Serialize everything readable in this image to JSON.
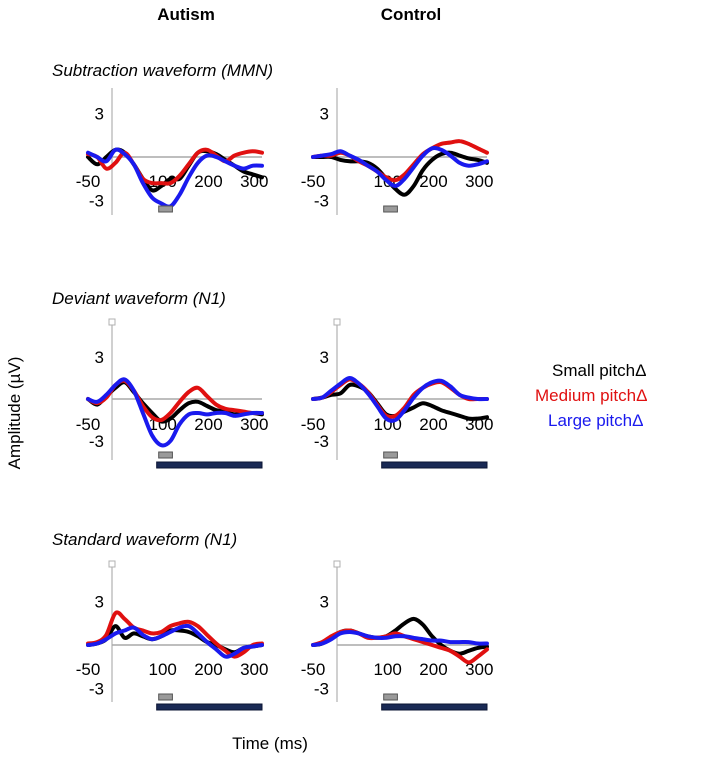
{
  "chart_data": {
    "type": "line",
    "xlabel": "Time (ms)",
    "ylabel": "Amplitude (µV)",
    "columns": [
      "Autism",
      "Control"
    ],
    "rows": [
      {
        "title": "Subtraction waveform (MMN)",
        "lowbar": false
      },
      {
        "title": "Deviant waveform (N1)",
        "lowbar": true
      },
      {
        "title": "Standard waveform (N1)",
        "lowbar": true
      }
    ],
    "x_ticks": [
      "-50",
      "100",
      "200",
      "300"
    ],
    "x_tick_values": [
      -50,
      100,
      200,
      300
    ],
    "y_ticks": [
      "3",
      "-3"
    ],
    "y_tick_values": [
      3,
      -3
    ],
    "xlim": [
      -50,
      330
    ],
    "ylim": [
      -4,
      5
    ],
    "legend": [
      {
        "name": "Small pitchΔ",
        "color": "#000000"
      },
      {
        "name": "Medium pitchΔ",
        "color": "#e01010"
      },
      {
        "name": "Large pitchΔ",
        "color": "#1a1aee"
      }
    ],
    "time_markers": {
      "short_window": [
        100,
        130
      ],
      "long_window": [
        100,
        330
      ]
    },
    "marker_colors": {
      "short": "#9a9a9a",
      "long": "#1a2a55"
    },
    "panels": [
      {
        "column": "Autism",
        "row": "Subtraction waveform (MMN)",
        "series": [
          {
            "name": "Small pitchΔ",
            "x": [
              -50,
              -30,
              -10,
              10,
              30,
              50,
              70,
              90,
              110,
              130,
              150,
              170,
              190,
              210,
              230,
              250,
              270,
              290,
              310,
              330
            ],
            "y": [
              0,
              -0.5,
              0,
              0.5,
              0.3,
              -0.5,
              -1.5,
              -2.3,
              -2.0,
              -1.5,
              -1.5,
              -0.6,
              0.3,
              0.4,
              0.2,
              -0.2,
              -0.6,
              -1.0,
              -1.2,
              -1.4
            ]
          },
          {
            "name": "Medium pitchΔ",
            "x": [
              -50,
              -30,
              -10,
              10,
              30,
              50,
              70,
              90,
              110,
              130,
              150,
              170,
              190,
              210,
              230,
              250,
              270,
              290,
              310,
              330
            ],
            "y": [
              0.2,
              0,
              -0.8,
              -0.4,
              0.3,
              -0.5,
              -1.5,
              -1.8,
              -1.8,
              -1.8,
              -1.3,
              -0.5,
              0.3,
              0.5,
              0.1,
              -0.3,
              0.1,
              0.3,
              0.4,
              0.3
            ]
          },
          {
            "name": "Large pitchΔ",
            "x": [
              -50,
              -30,
              -10,
              10,
              30,
              50,
              70,
              90,
              110,
              130,
              150,
              170,
              190,
              210,
              230,
              250,
              270,
              290,
              310,
              330
            ],
            "y": [
              0.3,
              0,
              -0.3,
              0.5,
              0.2,
              -0.5,
              -1.8,
              -2.8,
              -3.2,
              -3.4,
              -2.6,
              -1.4,
              -0.4,
              0.1,
              0,
              -0.3,
              -0.6,
              -0.8,
              -0.6,
              -0.6
            ]
          }
        ]
      },
      {
        "column": "Control",
        "row": "Subtraction waveform (MMN)",
        "series": [
          {
            "name": "Small pitchΔ",
            "x": [
              -50,
              -30,
              -10,
              10,
              30,
              50,
              70,
              90,
              110,
              130,
              150,
              170,
              190,
              210,
              230,
              250,
              270,
              290,
              310,
              330
            ],
            "y": [
              0,
              0,
              0,
              -0.2,
              -0.3,
              -0.3,
              -0.4,
              -0.8,
              -1.5,
              -2.2,
              -2.6,
              -2.0,
              -0.9,
              -0.2,
              0.2,
              0.3,
              0.1,
              -0.1,
              -0.2,
              -0.4
            ]
          },
          {
            "name": "Medium pitchΔ",
            "x": [
              -50,
              -30,
              -10,
              10,
              30,
              50,
              70,
              90,
              110,
              130,
              150,
              170,
              190,
              210,
              230,
              250,
              270,
              290,
              310,
              330
            ],
            "y": [
              0,
              0.1,
              0.1,
              0.3,
              0.1,
              -0.3,
              -0.6,
              -1.0,
              -1.4,
              -1.6,
              -1.2,
              -0.5,
              0.2,
              0.6,
              0.9,
              1.0,
              1.1,
              0.9,
              0.6,
              0.3
            ]
          },
          {
            "name": "Large pitchΔ",
            "x": [
              -50,
              -30,
              -10,
              10,
              30,
              50,
              70,
              90,
              110,
              130,
              150,
              170,
              190,
              210,
              230,
              250,
              270,
              290,
              310,
              330
            ],
            "y": [
              0,
              0.1,
              0.2,
              0.4,
              0.1,
              -0.2,
              -0.6,
              -1.0,
              -1.6,
              -2.0,
              -1.5,
              -0.7,
              0.1,
              0.6,
              0.5,
              0.1,
              -0.4,
              -0.6,
              -0.5,
              -0.3
            ]
          }
        ]
      },
      {
        "column": "Autism",
        "row": "Deviant waveform (N1)",
        "series": [
          {
            "name": "Small pitchΔ",
            "x": [
              -50,
              -30,
              -10,
              10,
              30,
              50,
              70,
              90,
              110,
              130,
              150,
              170,
              190,
              210,
              230,
              250,
              270,
              290,
              310,
              330
            ],
            "y": [
              0,
              -0.4,
              0.2,
              0.8,
              1.2,
              0.5,
              -0.3,
              -1.0,
              -1.6,
              -1.4,
              -0.8,
              -0.3,
              -0.2,
              -0.5,
              -0.8,
              -0.9,
              -1.1,
              -1.0,
              -1.0,
              -1.1
            ]
          },
          {
            "name": "Medium pitchΔ",
            "x": [
              -50,
              -30,
              -10,
              10,
              30,
              50,
              70,
              90,
              110,
              130,
              150,
              170,
              190,
              210,
              230,
              250,
              270,
              290,
              310,
              330
            ],
            "y": [
              0,
              -0.3,
              0.1,
              1.0,
              1.3,
              0.6,
              -0.5,
              -1.3,
              -1.5,
              -1.0,
              -0.2,
              0.5,
              0.8,
              0.2,
              -0.4,
              -0.7,
              -0.8,
              -0.9,
              -1.0,
              -1.0
            ]
          },
          {
            "name": "Large pitchΔ",
            "x": [
              -50,
              -30,
              -10,
              10,
              30,
              50,
              70,
              90,
              110,
              130,
              150,
              170,
              190,
              210,
              230,
              250,
              270,
              290,
              310,
              330
            ],
            "y": [
              0,
              -0.2,
              0.3,
              1.0,
              1.4,
              0.6,
              -1.0,
              -2.6,
              -3.3,
              -3.0,
              -1.8,
              -1.1,
              -1.0,
              -1.1,
              -1.0,
              -1.0,
              -1.2,
              -1.1,
              -1.0,
              -1.0
            ]
          }
        ]
      },
      {
        "column": "Control",
        "row": "Deviant waveform (N1)",
        "series": [
          {
            "name": "Small pitchΔ",
            "x": [
              -50,
              -30,
              -10,
              10,
              30,
              50,
              70,
              90,
              110,
              130,
              150,
              170,
              190,
              210,
              230,
              250,
              270,
              290,
              310,
              330
            ],
            "y": [
              0,
              0.1,
              0.3,
              0.4,
              1.0,
              0.9,
              0.5,
              -0.3,
              -1.1,
              -1.2,
              -0.9,
              -0.6,
              -0.3,
              -0.5,
              -0.8,
              -1.0,
              -1.2,
              -1.4,
              -1.4,
              -1.3
            ]
          },
          {
            "name": "Medium pitchΔ",
            "x": [
              -50,
              -30,
              -10,
              10,
              30,
              50,
              70,
              90,
              110,
              130,
              150,
              170,
              190,
              210,
              230,
              250,
              270,
              290,
              310,
              330
            ],
            "y": [
              0,
              0.1,
              0.5,
              1.0,
              1.4,
              1.1,
              0.5,
              -0.4,
              -1.2,
              -1.2,
              -0.6,
              0.3,
              0.8,
              1.1,
              1.2,
              0.8,
              0.3,
              0,
              0,
              0
            ]
          },
          {
            "name": "Large pitchΔ",
            "x": [
              -50,
              -30,
              -10,
              10,
              30,
              50,
              70,
              90,
              110,
              130,
              150,
              170,
              190,
              210,
              230,
              250,
              270,
              290,
              310,
              330
            ],
            "y": [
              0,
              0.1,
              0.6,
              1.1,
              1.5,
              1.1,
              0.4,
              -0.5,
              -1.4,
              -1.5,
              -0.8,
              0.1,
              0.8,
              1.2,
              1.3,
              0.9,
              0.3,
              0.1,
              0,
              0
            ]
          }
        ]
      },
      {
        "column": "Autism",
        "row": "Standard waveform (N1)",
        "series": [
          {
            "name": "Small pitchΔ",
            "x": [
              -50,
              -30,
              -10,
              10,
              30,
              50,
              70,
              90,
              110,
              130,
              150,
              170,
              190,
              210,
              230,
              250,
              270,
              290,
              310,
              330
            ],
            "y": [
              0,
              0.1,
              0.4,
              1.3,
              0.5,
              0.8,
              0.6,
              0.4,
              0.6,
              1.0,
              1.0,
              0.9,
              0.6,
              0.2,
              0,
              -0.3,
              -0.5,
              -0.2,
              -0.1,
              0
            ]
          },
          {
            "name": "Medium pitchΔ",
            "x": [
              -50,
              -30,
              -10,
              10,
              30,
              50,
              70,
              90,
              110,
              130,
              150,
              170,
              190,
              210,
              230,
              250,
              270,
              290,
              310,
              330
            ],
            "y": [
              0.1,
              0.2,
              0.7,
              2.2,
              1.8,
              1.2,
              1.0,
              0.8,
              0.9,
              1.3,
              1.5,
              1.6,
              1.3,
              0.7,
              0.1,
              -0.4,
              -0.8,
              -0.5,
              0,
              0.1
            ]
          },
          {
            "name": "Large pitchΔ",
            "x": [
              -50,
              -30,
              -10,
              10,
              30,
              50,
              70,
              90,
              110,
              130,
              150,
              170,
              190,
              210,
              230,
              250,
              270,
              290,
              310,
              330
            ],
            "y": [
              0,
              0.1,
              0.4,
              0.8,
              1.0,
              1.2,
              0.7,
              0.4,
              0.6,
              0.9,
              1.2,
              1.3,
              0.8,
              0.2,
              -0.3,
              -0.8,
              -0.6,
              -0.2,
              -0.1,
              0
            ]
          }
        ]
      },
      {
        "column": "Control",
        "row": "Standard waveform (N1)",
        "series": [
          {
            "name": "Small pitchΔ",
            "x": [
              -50,
              -30,
              -10,
              10,
              30,
              50,
              70,
              90,
              110,
              130,
              150,
              170,
              190,
              210,
              230,
              250,
              270,
              290,
              310,
              330
            ],
            "y": [
              0,
              0.1,
              0.5,
              0.9,
              1.0,
              0.8,
              0.6,
              0.5,
              0.6,
              1.0,
              1.5,
              1.8,
              1.4,
              0.6,
              0,
              -0.4,
              -0.6,
              -0.4,
              -0.2,
              -0.1
            ]
          },
          {
            "name": "Medium pitchΔ",
            "x": [
              -50,
              -30,
              -10,
              10,
              30,
              50,
              70,
              90,
              110,
              130,
              150,
              170,
              190,
              210,
              230,
              250,
              270,
              290,
              310,
              330
            ],
            "y": [
              0,
              0.2,
              0.6,
              0.9,
              1.0,
              0.8,
              0.5,
              0.5,
              0.6,
              0.8,
              0.6,
              0.4,
              0.2,
              0,
              -0.2,
              -0.4,
              -0.8,
              -1.2,
              -0.8,
              -0.3
            ]
          },
          {
            "name": "Large pitchΔ",
            "x": [
              -50,
              -30,
              -10,
              10,
              30,
              50,
              70,
              90,
              110,
              130,
              150,
              170,
              190,
              210,
              230,
              250,
              270,
              290,
              310,
              330
            ],
            "y": [
              0,
              0.1,
              0.4,
              0.8,
              0.9,
              0.8,
              0.6,
              0.5,
              0.5,
              0.6,
              0.6,
              0.5,
              0.4,
              0.3,
              0.3,
              0.2,
              0.2,
              0.2,
              0.1,
              0.1
            ]
          }
        ]
      }
    ]
  }
}
